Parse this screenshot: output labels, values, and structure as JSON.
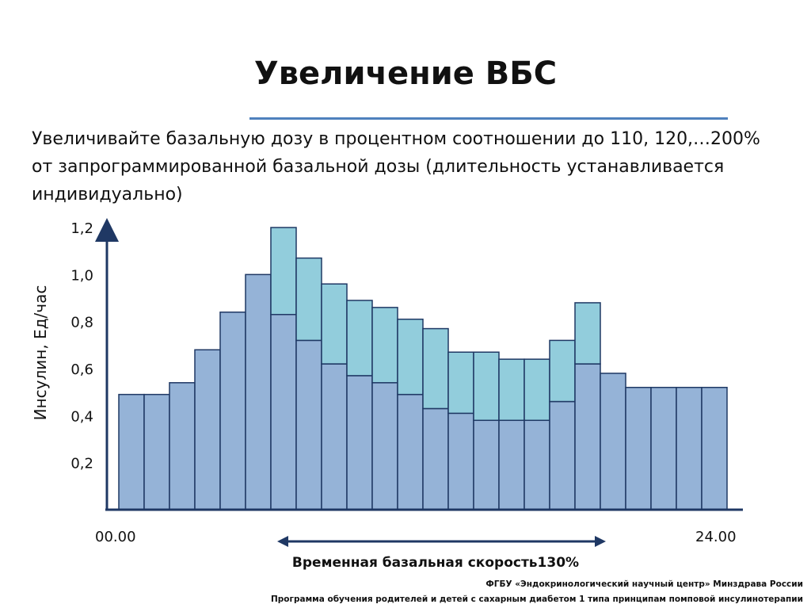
{
  "slide": {
    "title": "Увеличение ВБС",
    "body": "Увеличивайте базальную дозу в процентном соотношении до 110, 120,…200% от запрограммированной базальной дозы (длительность устанавливается индивидуально)",
    "range_label": "Временная базальная скорость130%",
    "footer_line1": "ФГБУ «Эндокринологический научный центр» Минздрава России",
    "footer_line2": "Программа обучения родителей и детей с сахарным диабетом 1 типа принципам помповой инсулинотерапии"
  },
  "colors": {
    "title_rule": "#4f81bd",
    "base_fill": "#95b3d7",
    "temp_fill": "#92cddc",
    "bar_stroke": "#1f3864",
    "arrow": "#1f3864"
  },
  "chart_data": {
    "type": "bar",
    "stacked": true,
    "ylabel": "Инсулин, Ед/час",
    "x_start_label": "00.00",
    "x_end_label": "24.00",
    "y_ticks": [
      "0,2",
      "0,4",
      "0,6",
      "0,8",
      "1,0",
      "1,2"
    ],
    "y_tick_values": [
      0.2,
      0.4,
      0.6,
      0.8,
      1.0,
      1.2
    ],
    "ylim": [
      0,
      1.2
    ],
    "grid": false,
    "temp_basal_range": {
      "from_bar": 6,
      "to_bar": 18
    },
    "series": [
      {
        "values": [
          0.49,
          0.49,
          0.54,
          0.68,
          0.84,
          1.0,
          0.83,
          0.72,
          0.62,
          0.57,
          0.54,
          0.49,
          0.43,
          0.41,
          0.38,
          0.38,
          0.38,
          0.46,
          0.62,
          0.58,
          0.52,
          0.52,
          0.52,
          0.52
        ]
      },
      {
        "values": [
          0,
          0,
          0,
          0,
          0,
          0,
          0.37,
          0.35,
          0.34,
          0.32,
          0.32,
          0.32,
          0.34,
          0.26,
          0.29,
          0.26,
          0.26,
          0.26,
          0.26,
          0,
          0,
          0,
          0,
          0
        ]
      }
    ]
  }
}
